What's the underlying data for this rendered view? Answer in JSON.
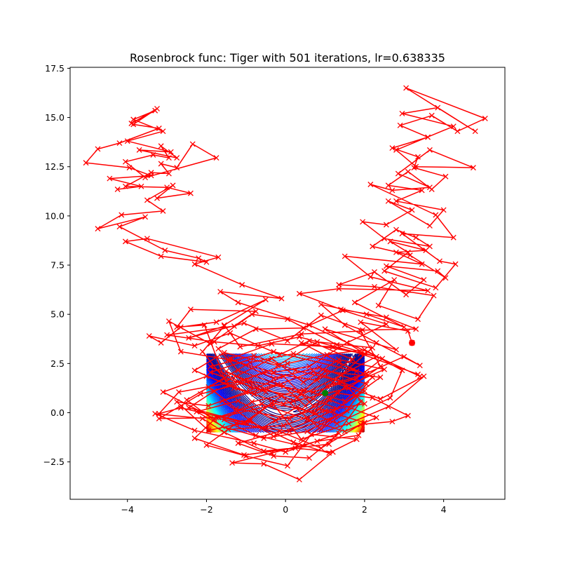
{
  "chart_data": {
    "type": "line",
    "title": "Rosenbrock func: Tiger with 501 iterations, lr=0.638335",
    "xlim": [
      -5.45,
      5.55
    ],
    "ylim": [
      -4.4,
      17.55
    ],
    "x_ticks": [
      -4,
      -2,
      0,
      2,
      4
    ],
    "x_tick_labels": [
      "−4",
      "−2",
      "0",
      "2",
      "4"
    ],
    "y_ticks": [
      -2.5,
      0.0,
      2.5,
      5.0,
      7.5,
      10.0,
      12.5,
      15.0,
      17.5
    ],
    "y_tick_labels": [
      "−2.5",
      "0.0",
      "2.5",
      "5.0",
      "7.5",
      "10.0",
      "12.5",
      "15.0",
      "17.5"
    ],
    "grid": false,
    "contour": {
      "function": "Rosenbrock",
      "x_range": [
        -2,
        2
      ],
      "y_range": [
        -1,
        3
      ],
      "colormap": "jet"
    },
    "start_point": {
      "x": 3.2,
      "y": 3.55,
      "color": "#ff0000",
      "marker": "circle"
    },
    "minimum_point": {
      "x": 1.0,
      "y": 1.0,
      "color": "#008000",
      "marker": "circle"
    },
    "path": {
      "color": "#ff0000",
      "marker": "x",
      "points": [
        [
          3.2,
          3.55
        ],
        [
          3.1,
          4.15
        ],
        [
          1.9,
          4.6
        ],
        [
          2.8,
          3.2
        ],
        [
          1.0,
          4.25
        ],
        [
          2.0,
          3.0
        ],
        [
          0.4,
          3.55
        ],
        [
          1.8,
          2.1
        ],
        [
          -0.3,
          3.1
        ],
        [
          -1.9,
          2.05
        ],
        [
          -0.5,
          1.05
        ],
        [
          -1.5,
          2.1
        ],
        [
          0.2,
          0.6
        ],
        [
          1.0,
          2.1
        ],
        [
          2.4,
          1.8
        ],
        [
          1.3,
          0.2
        ],
        [
          -0.2,
          1.45
        ],
        [
          -1.6,
          0.6
        ],
        [
          -0.3,
          -1.2
        ],
        [
          1.2,
          0.1
        ],
        [
          2.0,
          1.1
        ],
        [
          0.7,
          2.1
        ],
        [
          -0.8,
          0.95
        ],
        [
          -2.0,
          1.85
        ],
        [
          -3.1,
          1.05
        ],
        [
          -1.8,
          -0.3
        ],
        [
          -0.3,
          0.4
        ],
        [
          0.4,
          -1.35
        ],
        [
          1.6,
          -0.55
        ],
        [
          2.6,
          0.3
        ],
        [
          3.5,
          1.85
        ],
        [
          2.4,
          0.7
        ],
        [
          1.2,
          1.55
        ],
        [
          2.2,
          3.3
        ],
        [
          0.8,
          3.6
        ],
        [
          -0.2,
          2.4
        ],
        [
          -1.55,
          3.05
        ],
        [
          -2.3,
          2.15
        ],
        [
          -1.3,
          1.25
        ],
        [
          -0.05,
          0.45
        ],
        [
          1.6,
          1.25
        ],
        [
          2.4,
          2.35
        ],
        [
          1.9,
          4.15
        ],
        [
          0.4,
          4.0
        ],
        [
          -1.15,
          3.35
        ],
        [
          -1.55,
          4.45
        ],
        [
          -0.5,
          5.75
        ],
        [
          -1.75,
          4.6
        ],
        [
          -2.65,
          4.35
        ],
        [
          -3.15,
          3.55
        ],
        [
          -3.45,
          3.9
        ],
        [
          -2.3,
          3.4
        ],
        [
          -1.4,
          4.05
        ],
        [
          -0.15,
          2.95
        ],
        [
          0.6,
          3.65
        ],
        [
          1.7,
          2.7
        ],
        [
          0.8,
          1.65
        ],
        [
          -0.55,
          2.05
        ],
        [
          -1.8,
          1.1
        ],
        [
          -2.45,
          0.25
        ],
        [
          -1.0,
          -0.5
        ],
        [
          -0.1,
          0.85
        ],
        [
          0.9,
          -0.85
        ],
        [
          1.9,
          0.55
        ],
        [
          1.1,
          -1.6
        ],
        [
          -0.55,
          -1.95
        ],
        [
          -1.55,
          -1.0
        ],
        [
          -2.1,
          -0.3
        ],
        [
          -3.3,
          -0.05
        ],
        [
          -2.3,
          -0.9
        ],
        [
          -0.8,
          -1.55
        ],
        [
          0.0,
          -2.0
        ],
        [
          1.35,
          -1.05
        ],
        [
          0.6,
          -2.3
        ],
        [
          -0.3,
          -2.2
        ],
        [
          -1.2,
          -1.55
        ],
        [
          -0.15,
          -0.95
        ],
        [
          0.9,
          -1.8
        ],
        [
          1.9,
          -0.6
        ],
        [
          2.7,
          -0.45
        ],
        [
          3.1,
          -0.15
        ],
        [
          2.2,
          0.75
        ],
        [
          1.3,
          1.0
        ],
        [
          0.7,
          0.35
        ],
        [
          -0.05,
          1.85
        ],
        [
          -1.0,
          1.05
        ],
        [
          -1.95,
          0.35
        ],
        [
          -2.75,
          0.55
        ],
        [
          -1.95,
          -0.9
        ],
        [
          -0.9,
          -0.45
        ],
        [
          0.2,
          -1.5
        ],
        [
          1.1,
          -2.05
        ],
        [
          1.8,
          -1.35
        ],
        [
          0.65,
          -1.1
        ],
        [
          0.05,
          -2.7
        ],
        [
          -1.0,
          -2.2
        ],
        [
          -2.0,
          -1.65
        ],
        [
          -1.25,
          -0.55
        ],
        [
          0.1,
          -0.95
        ],
        [
          1.25,
          -0.2
        ],
        [
          0.3,
          -1.65
        ],
        [
          -0.75,
          -1.15
        ],
        [
          -1.7,
          -0.25
        ],
        [
          -3.2,
          -0.3
        ],
        [
          -2.15,
          0.95
        ],
        [
          -0.9,
          1.6
        ],
        [
          0.7,
          1.05
        ],
        [
          1.8,
          1.75
        ],
        [
          2.45,
          2.75
        ],
        [
          1.3,
          3.45
        ],
        [
          0.05,
          4.75
        ],
        [
          -0.85,
          5.0
        ],
        [
          -1.9,
          3.5
        ],
        [
          -2.95,
          4.65
        ],
        [
          -2.65,
          3.1
        ],
        [
          -1.45,
          2.7
        ],
        [
          -0.3,
          2.05
        ],
        [
          0.6,
          2.35
        ],
        [
          1.55,
          3.55
        ],
        [
          2.55,
          4.5
        ],
        [
          1.45,
          5.2
        ],
        [
          0.45,
          4.3
        ],
        [
          -0.75,
          4.25
        ],
        [
          -1.7,
          3.25
        ],
        [
          -1.2,
          2.15
        ],
        [
          -0.05,
          1.35
        ],
        [
          0.5,
          0.35
        ],
        [
          1.05,
          1.35
        ],
        [
          2.05,
          2.0
        ],
        [
          3.0,
          2.85
        ],
        [
          3.4,
          2.4
        ],
        [
          2.3,
          3.55
        ],
        [
          1.5,
          4.45
        ],
        [
          0.9,
          5.5
        ],
        [
          2.05,
          5.0
        ],
        [
          3.0,
          4.35
        ],
        [
          1.75,
          5.6
        ],
        [
          2.75,
          6.75
        ],
        [
          2.35,
          5.45
        ],
        [
          3.35,
          4.75
        ],
        [
          3.75,
          5.95
        ],
        [
          2.25,
          6.4
        ],
        [
          1.35,
          6.5
        ],
        [
          2.25,
          7.15
        ],
        [
          3.05,
          6.0
        ],
        [
          3.5,
          6.75
        ],
        [
          2.55,
          7.45
        ],
        [
          3.85,
          7.2
        ],
        [
          4.05,
          6.85
        ],
        [
          3.15,
          8.0
        ],
        [
          2.2,
          8.45
        ],
        [
          2.8,
          9.3
        ],
        [
          3.3,
          8.9
        ],
        [
          3.65,
          8.45
        ],
        [
          2.5,
          8.85
        ],
        [
          1.95,
          9.7
        ],
        [
          2.55,
          9.55
        ],
        [
          3.2,
          10.3
        ],
        [
          2.6,
          10.75
        ],
        [
          3.65,
          9.5
        ],
        [
          4.0,
          10.3
        ],
        [
          2.8,
          10.75
        ],
        [
          3.45,
          11.3
        ],
        [
          2.6,
          11.55
        ],
        [
          3.1,
          12.25
        ],
        [
          3.7,
          11.35
        ],
        [
          4.05,
          12.0
        ],
        [
          3.25,
          12.45
        ],
        [
          3.35,
          13.0
        ],
        [
          2.7,
          13.45
        ],
        [
          3.6,
          14.0
        ],
        [
          2.9,
          14.6
        ],
        [
          3.7,
          15.1
        ],
        [
          4.35,
          14.3
        ],
        [
          5.05,
          14.95
        ],
        [
          3.05,
          16.5
        ],
        [
          4.8,
          14.3
        ],
        [
          3.85,
          15.5
        ],
        [
          2.95,
          15.2
        ],
        [
          4.25,
          14.55
        ],
        [
          2.8,
          13.35
        ],
        [
          3.3,
          12.5
        ],
        [
          4.75,
          12.45
        ],
        [
          3.65,
          13.35
        ],
        [
          2.85,
          12.15
        ],
        [
          3.65,
          11.45
        ],
        [
          2.7,
          11.3
        ],
        [
          2.15,
          11.6
        ],
        [
          3.8,
          10.05
        ],
        [
          4.25,
          8.9
        ],
        [
          2.95,
          9.1
        ],
        [
          3.9,
          7.7
        ],
        [
          4.3,
          7.55
        ],
        [
          3.8,
          6.35
        ],
        [
          2.5,
          7.2
        ],
        [
          3.1,
          8.15
        ],
        [
          2.65,
          8.7
        ],
        [
          3.55,
          8.25
        ],
        [
          2.8,
          8.15
        ],
        [
          3.45,
          7.55
        ],
        [
          1.5,
          7.95
        ],
        [
          2.15,
          6.9
        ],
        [
          3.6,
          6.2
        ],
        [
          1.35,
          6.3
        ],
        [
          0.35,
          6.05
        ],
        [
          1.4,
          5.25
        ],
        [
          2.55,
          4.85
        ],
        [
          3.3,
          4.25
        ],
        [
          1.95,
          4.2
        ],
        [
          0.9,
          4.95
        ],
        [
          0.05,
          3.65
        ],
        [
          -1.05,
          4.55
        ],
        [
          -2.45,
          3.8
        ],
        [
          -1.55,
          4.4
        ],
        [
          -2.1,
          3.1
        ],
        [
          -1.5,
          1.6
        ],
        [
          -0.35,
          2.75
        ],
        [
          0.45,
          1.55
        ],
        [
          1.35,
          2.7
        ],
        [
          2.5,
          2.2
        ],
        [
          1.5,
          1.3
        ],
        [
          0.75,
          0.0
        ],
        [
          -0.35,
          0.5
        ],
        [
          -1.05,
          -0.5
        ],
        [
          -2.65,
          0.25
        ],
        [
          -3.2,
          -0.05
        ],
        [
          -2.7,
          1.05
        ],
        [
          -1.05,
          1.65
        ],
        [
          0.05,
          2.5
        ],
        [
          1.05,
          2.95
        ],
        [
          2.0,
          3.2
        ],
        [
          2.95,
          2.15
        ],
        [
          2.65,
          0.75
        ],
        [
          1.3,
          -0.55
        ],
        [
          0.3,
          0.3
        ],
        [
          -0.6,
          -0.8
        ],
        [
          -1.55,
          -0.35
        ],
        [
          -0.85,
          0.55
        ],
        [
          0.45,
          1.15
        ],
        [
          1.5,
          0.6
        ],
        [
          2.2,
          1.8
        ],
        [
          1.35,
          2.55
        ],
        [
          0.2,
          3.0
        ],
        [
          -0.9,
          2.55
        ],
        [
          -1.95,
          1.3
        ],
        [
          -1.25,
          0.2
        ],
        [
          0.1,
          -0.3
        ],
        [
          1.1,
          0.65
        ],
        [
          2.3,
          -0.25
        ],
        [
          1.5,
          -0.95
        ],
        [
          0.55,
          -0.35
        ],
        [
          -0.6,
          0.45
        ],
        [
          -1.75,
          -0.25
        ],
        [
          -2.3,
          -1.3
        ],
        [
          -1.05,
          -2.15
        ],
        [
          0.25,
          -1.8
        ],
        [
          1.2,
          -2.0
        ],
        [
          0.35,
          -3.4
        ],
        [
          -0.55,
          -2.6
        ],
        [
          -1.35,
          -2.55
        ],
        [
          -0.35,
          -2.05
        ],
        [
          0.8,
          -1.45
        ],
        [
          1.85,
          -1.15
        ],
        [
          2.0,
          -0.5
        ],
        [
          0.85,
          0.2
        ],
        [
          -0.25,
          -0.4
        ],
        [
          -1.2,
          0.6
        ],
        [
          -2.25,
          0.05
        ],
        [
          -1.45,
          -0.85
        ],
        [
          -0.05,
          -0.65
        ],
        [
          1.0,
          0.1
        ],
        [
          2.0,
          0.45
        ],
        [
          1.4,
          1.6
        ],
        [
          0.25,
          2.15
        ],
        [
          -0.8,
          2.9
        ],
        [
          -1.9,
          2.35
        ],
        [
          -0.9,
          1.3
        ],
        [
          0.3,
          0.8
        ],
        [
          1.4,
          1.9
        ],
        [
          2.3,
          2.85
        ],
        [
          1.2,
          3.35
        ],
        [
          -0.35,
          3.5
        ],
        [
          -1.4,
          2.75
        ],
        [
          -0.3,
          1.75
        ],
        [
          0.85,
          2.3
        ],
        [
          2.05,
          1.45
        ],
        [
          1.55,
          0.1
        ],
        [
          0.55,
          -0.95
        ],
        [
          -0.55,
          -1.3
        ],
        [
          -1.6,
          -0.7
        ],
        [
          -2.5,
          0.65
        ],
        [
          -1.55,
          1.75
        ],
        [
          -2.05,
          4.45
        ],
        [
          -2.75,
          4.35
        ],
        [
          -2.4,
          5.25
        ],
        [
          -0.75,
          5.15
        ],
        [
          -1.3,
          4.4
        ],
        [
          -3.0,
          3.95
        ],
        [
          -1.8,
          3.6
        ],
        [
          -0.7,
          3.4
        ],
        [
          0.35,
          3.85
        ],
        [
          1.9,
          3.0
        ],
        [
          3.35,
          1.95
        ],
        [
          3.4,
          1.85
        ],
        [
          0.6,
          4.45
        ],
        [
          -1.2,
          5.6
        ],
        [
          -1.65,
          6.15
        ],
        [
          -0.1,
          5.8
        ],
        [
          -1.1,
          6.5
        ],
        [
          -2.3,
          7.55
        ],
        [
          -1.7,
          7.9
        ],
        [
          -3.5,
          8.85
        ],
        [
          -4.05,
          8.7
        ],
        [
          -3.15,
          7.95
        ],
        [
          -2.0,
          7.65
        ],
        [
          -2.2,
          7.85
        ],
        [
          -3.05,
          8.25
        ],
        [
          -4.2,
          9.45
        ],
        [
          -3.55,
          9.95
        ],
        [
          -4.75,
          9.35
        ],
        [
          -4.15,
          10.05
        ],
        [
          -3.1,
          10.25
        ],
        [
          -3.5,
          10.8
        ],
        [
          -2.85,
          11.55
        ],
        [
          -3.25,
          10.9
        ],
        [
          -2.4,
          11.15
        ],
        [
          -3.0,
          11.45
        ],
        [
          -4.05,
          11.5
        ],
        [
          -3.4,
          12.2
        ],
        [
          -2.95,
          12.15
        ],
        [
          -3.15,
          12.65
        ],
        [
          -2.75,
          12.45
        ],
        [
          -2.35,
          13.65
        ],
        [
          -1.75,
          12.95
        ],
        [
          -3.55,
          11.95
        ],
        [
          -4.05,
          12.75
        ],
        [
          -3.35,
          13.1
        ],
        [
          -2.95,
          12.95
        ],
        [
          -3.15,
          13.55
        ],
        [
          -2.75,
          12.95
        ],
        [
          -3.7,
          13.35
        ],
        [
          -2.9,
          13.25
        ],
        [
          -4.0,
          13.8
        ],
        [
          -3.1,
          14.3
        ],
        [
          -3.85,
          14.9
        ],
        [
          -3.3,
          15.35
        ],
        [
          -3.9,
          14.7
        ],
        [
          -3.25,
          15.45
        ],
        [
          -3.85,
          14.65
        ],
        [
          -3.2,
          14.45
        ],
        [
          -4.2,
          13.7
        ],
        [
          -4.75,
          13.4
        ],
        [
          -5.05,
          12.7
        ],
        [
          -3.95,
          12.45
        ],
        [
          -3.4,
          12.05
        ],
        [
          -4.45,
          11.9
        ],
        [
          -3.65,
          11.5
        ],
        [
          -4.25,
          11.35
        ]
      ]
    }
  }
}
